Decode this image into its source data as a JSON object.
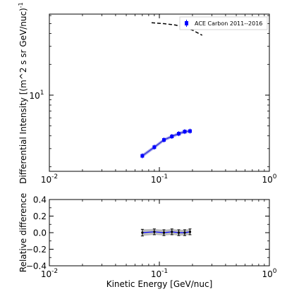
{
  "chart_data": [
    {
      "type": "line",
      "panel": "main",
      "xscale": "log",
      "yscale": "log",
      "xlim": [
        0.01,
        1
      ],
      "ylim": [
        1.8,
        62
      ],
      "xlabel": "",
      "ylabel": "Differential Intensity [(m^2 s sr GeV/nuc)",
      "ylabel_exponent": "-1",
      "x_ticks": [
        {
          "value": 0.01,
          "base": "10",
          "exp": "-2"
        },
        {
          "value": 0.1,
          "base": "10",
          "exp": "-1"
        },
        {
          "value": 1,
          "base": "10",
          "exp": "0"
        }
      ],
      "y_ticks": [
        {
          "value": 10,
          "base": "10",
          "exp": "1"
        }
      ],
      "legend": {
        "position": "top-right",
        "entries": [
          "ACE Carbon 2011--2016"
        ]
      },
      "series": [
        {
          "name": "ACE Carbon 2011--2016",
          "style": "points-with-errorbars",
          "color": "#0000ff",
          "x": [
            0.07,
            0.09,
            0.11,
            0.13,
            0.15,
            0.17,
            0.19
          ],
          "y": [
            2.55,
            3.1,
            3.65,
            3.95,
            4.2,
            4.4,
            4.45
          ]
        },
        {
          "style": "model-band",
          "color": "#2b2bd6",
          "band_color": "#8080e6",
          "x": [
            0.07,
            0.09,
            0.11,
            0.13,
            0.15,
            0.17,
            0.19
          ],
          "y": [
            2.55,
            3.1,
            3.65,
            3.95,
            4.2,
            4.4,
            4.45
          ],
          "lower": [
            2.45,
            2.98,
            3.52,
            3.82,
            4.05,
            4.25,
            4.3
          ],
          "upper": [
            2.65,
            3.22,
            3.78,
            4.08,
            4.35,
            4.55,
            4.6
          ]
        },
        {
          "style": "dashed",
          "color": "#000000",
          "x": [
            0.085,
            0.11,
            0.14,
            0.17,
            0.2,
            0.245
          ],
          "y": [
            51,
            50,
            48.5,
            46,
            43.2,
            38.5
          ]
        }
      ]
    },
    {
      "type": "line",
      "panel": "residual",
      "xscale": "log",
      "xlim": [
        0.01,
        1
      ],
      "ylim": [
        -0.4,
        0.4
      ],
      "xlabel": "Kinetic Energy [GeV/nuc]",
      "ylabel": "Relative difference",
      "x_ticks": [
        {
          "value": 0.01,
          "base": "10",
          "exp": "-2"
        },
        {
          "value": 0.1,
          "base": "10",
          "exp": "-1"
        },
        {
          "value": 1,
          "base": "10",
          "exp": "0"
        }
      ],
      "y_ticks": [
        {
          "value": 0.4,
          "label": "0.4"
        },
        {
          "value": 0.2,
          "label": "0.2"
        },
        {
          "value": 0.0,
          "label": "0.0"
        },
        {
          "value": -0.2,
          "label": "−0.2"
        },
        {
          "value": -0.4,
          "label": "−0.4"
        }
      ],
      "series": [
        {
          "style": "points-with-errorbars",
          "color": "#000000",
          "line_color": "#0000ff",
          "band_color": "#a6a6a6",
          "x": [
            0.07,
            0.09,
            0.11,
            0.13,
            0.15,
            0.17,
            0.19
          ],
          "y": [
            0.0,
            0.01,
            0.0,
            0.01,
            0.0,
            0.0,
            0.01
          ],
          "err": [
            0.04,
            0.035,
            0.035,
            0.035,
            0.035,
            0.035,
            0.035
          ]
        }
      ]
    }
  ]
}
